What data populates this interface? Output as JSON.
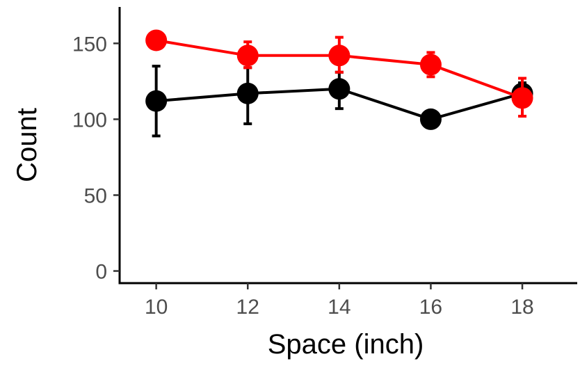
{
  "chart_data": {
    "type": "line",
    "title": "",
    "xlabel": "Space (inch)",
    "ylabel": "Count",
    "x": [
      10,
      12,
      14,
      16,
      18
    ],
    "xticks": [
      "10",
      "12",
      "14",
      "16",
      "18"
    ],
    "yticks": [
      "0",
      "50",
      "100",
      "150"
    ],
    "xlim": [
      9.2,
      19.2
    ],
    "ylim": [
      -8,
      174
    ],
    "grid": false,
    "legend": "none",
    "series": [
      {
        "color": "#000000",
        "values": [
          112,
          117,
          120,
          100,
          117
        ],
        "err_low": [
          89,
          97,
          107,
          100,
          109
        ],
        "err_high": [
          135,
          134,
          131,
          100,
          124
        ]
      },
      {
        "color": "#ff0000",
        "values": [
          152,
          142,
          142,
          136,
          114
        ],
        "err_low": [
          152,
          134,
          131,
          128,
          102
        ],
        "err_high": [
          152,
          151,
          154,
          144,
          127
        ]
      }
    ]
  }
}
